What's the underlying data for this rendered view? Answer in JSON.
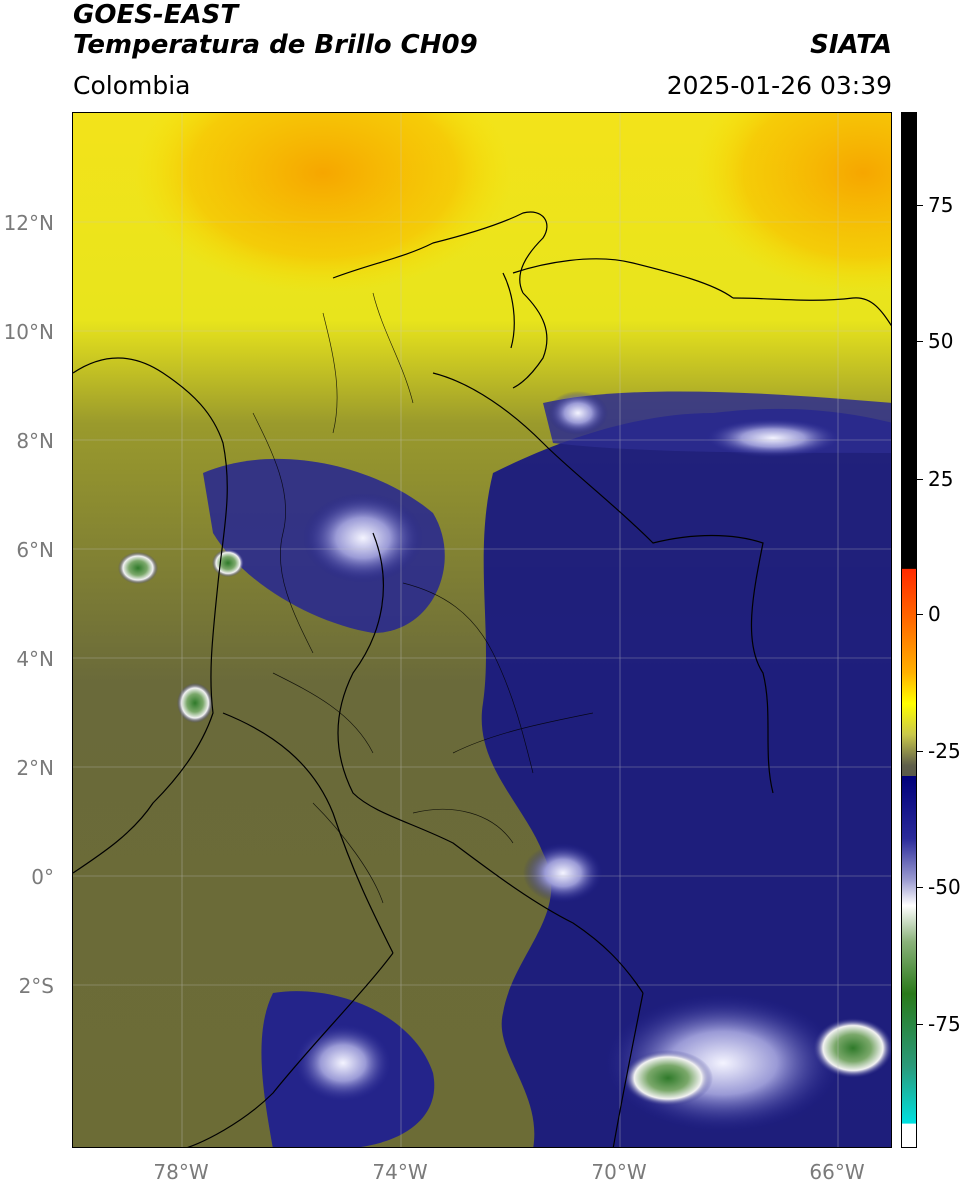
{
  "header": {
    "satellite": "GOES-EAST",
    "product": "Temperatura de Brillo CH09",
    "credit": "SIATA",
    "region": "Colombia",
    "timestamp": "2025-01-26 03:39"
  },
  "map": {
    "lon_range": [
      -80,
      -65
    ],
    "lat_range": [
      -5,
      14
    ],
    "lat_ticks": [
      {
        "value": 12,
        "label": "12°N"
      },
      {
        "value": 10,
        "label": "10°N"
      },
      {
        "value": 8,
        "label": "8°N"
      },
      {
        "value": 6,
        "label": "6°N"
      },
      {
        "value": 4,
        "label": "4°N"
      },
      {
        "value": 2,
        "label": "2°N"
      },
      {
        "value": 0,
        "label": "0°"
      },
      {
        "value": -2,
        "label": "2°S"
      }
    ],
    "lon_ticks": [
      {
        "value": -78,
        "label": "78°W"
      },
      {
        "value": -74,
        "label": "74°W"
      },
      {
        "value": -70,
        "label": "70°W"
      },
      {
        "value": -66,
        "label": "66°W"
      }
    ],
    "grid": true
  },
  "colorbar": {
    "range": [
      -90,
      90
    ],
    "ticks": [
      {
        "value": 75,
        "label": "75"
      },
      {
        "value": 50,
        "label": "50"
      },
      {
        "value": 25,
        "label": "25"
      },
      {
        "value": 0,
        "label": "0"
      },
      {
        "value": -25,
        "label": "-25"
      },
      {
        "value": -50,
        "label": "-50"
      },
      {
        "value": -75,
        "label": "-75"
      }
    ],
    "colors": {
      "warm_black": "#000000",
      "red": "#ff2a00",
      "orange": "#ff9a00",
      "yellow": "#ffff00",
      "olive": "#6f6f2a",
      "navy": "#00007a",
      "white": "#ffffff",
      "green": "#2a7a1a",
      "cyan": "#00d6d6"
    }
  }
}
